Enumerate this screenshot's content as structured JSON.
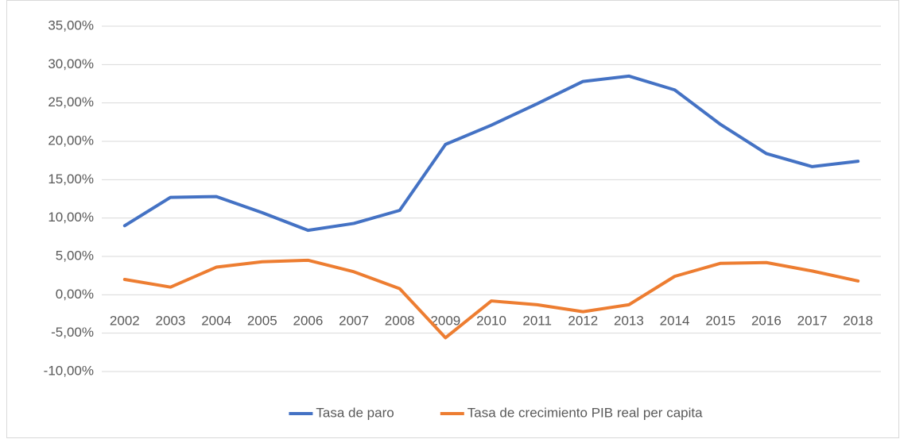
{
  "chart_data": {
    "type": "line",
    "categories": [
      "2002",
      "2003",
      "2004",
      "2005",
      "2006",
      "2007",
      "2008",
      "2009",
      "2010",
      "2011",
      "2012",
      "2013",
      "2014",
      "2015",
      "2016",
      "2017",
      "2018"
    ],
    "series": [
      {
        "name": "Tasa de paro",
        "color": "#4472c4",
        "values": [
          9.0,
          12.7,
          12.8,
          10.7,
          8.4,
          9.3,
          11.0,
          19.6,
          22.1,
          24.9,
          27.8,
          28.5,
          26.7,
          22.2,
          18.4,
          16.7,
          17.4
        ]
      },
      {
        "name": "Tasa de crecimiento PIB real per capita",
        "color": "#ed7d31",
        "values": [
          2.0,
          1.0,
          3.6,
          4.3,
          4.5,
          3.0,
          0.8,
          -5.6,
          -0.8,
          -1.3,
          -2.2,
          -1.3,
          2.4,
          4.1,
          4.2,
          3.1,
          1.8
        ]
      }
    ],
    "ylim": [
      -10,
      35
    ],
    "yticks": [
      {
        "value": -10,
        "label": "-10,00%"
      },
      {
        "value": -5,
        "label": "-5,00%"
      },
      {
        "value": 0,
        "label": "0,00%"
      },
      {
        "value": 5,
        "label": "5,00%"
      },
      {
        "value": 10,
        "label": "10,00%"
      },
      {
        "value": 15,
        "label": "15,00%"
      },
      {
        "value": 20,
        "label": "20,00%"
      },
      {
        "value": 25,
        "label": "25,00%"
      },
      {
        "value": 30,
        "label": "30,00%"
      },
      {
        "value": 35,
        "label": "35,00%"
      }
    ],
    "grid": true,
    "legend": "bottom"
  }
}
